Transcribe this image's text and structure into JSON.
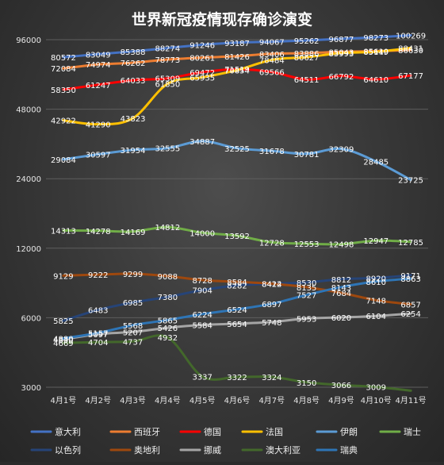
{
  "chart_data": {
    "type": "line",
    "title": "世界新冠疫情现存确诊演变",
    "xlabel": "",
    "ylabel": "",
    "y_scale": "log",
    "ylim": [
      3000,
      96000
    ],
    "yticks": [
      3000,
      6000,
      12000,
      24000,
      48000,
      96000
    ],
    "grid": "horizontal",
    "legend_position": "bottom",
    "categories": [
      "4月1号",
      "4月2号",
      "4月3号",
      "4月4号",
      "4月5号",
      "4月6号",
      "4月7号",
      "4月8号",
      "4月9号",
      "4月10号",
      "4月11号"
    ],
    "series": [
      {
        "name": "意大利",
        "color": "#4472c4",
        "values": [
          80572,
          83049,
          85388,
          88274,
          91246,
          93187,
          94067,
          95262,
          96877,
          98273,
          100269
        ]
      },
      {
        "name": "西班牙",
        "color": "#ed7d31",
        "values": [
          72084,
          74974,
          76262,
          78773,
          80261,
          81426,
          83406,
          83886,
          85043,
          85610,
          86630
        ]
      },
      {
        "name": "德国",
        "color": "#ff0000",
        "values": [
          58350,
          61247,
          64033,
          65309,
          69472,
          71519,
          69566,
          64511,
          66792,
          64610,
          67177
        ]
      },
      {
        "name": "法国",
        "color": "#ffc000",
        "values": [
          42922,
          41290,
          43823,
          61850,
          65935,
          70854,
          78484,
          80627,
          83993,
          85149,
          88431
        ]
      },
      {
        "name": "伊朗",
        "color": "#5b9bd5",
        "values": [
          29084,
          30597,
          31954,
          32555,
          34887,
          32525,
          31678,
          30781,
          32309,
          28485,
          23725
        ]
      },
      {
        "name": "瑞士",
        "color": "#70ad47",
        "values": [
          14313,
          14278,
          14169,
          14812,
          14000,
          13592,
          12728,
          12553,
          12498,
          12947,
          12785
        ]
      },
      {
        "name": "以色列",
        "color": "#264478",
        "values": [
          5825,
          6483,
          6985,
          7380,
          7904,
          8282,
          8414,
          8530,
          8812,
          8920,
          9171
        ]
      },
      {
        "name": "奥地利",
        "color": "#9e480e",
        "values": [
          9129,
          9222,
          9299,
          9088,
          8728,
          8584,
          8422,
          8135,
          7684,
          7148,
          6857
        ]
      },
      {
        "name": "挪威",
        "color": "#a5a5a5",
        "values": [
          4830,
          5097,
          5207,
          5426,
          5584,
          5654,
          5748,
          5953,
          6020,
          6104,
          6254
        ]
      },
      {
        "name": "澳大利亚",
        "color": "#43682b",
        "values": [
          4669,
          4704,
          4737,
          4932,
          3337,
          3322,
          3324,
          3150,
          3066,
          3009,
          2900
        ]
      },
      {
        "name": "瑞典",
        "color": "#2e75b6",
        "values": [
          4880,
          5157,
          5568,
          5865,
          6224,
          6524,
          6897,
          7527,
          8143,
          8610,
          8863
        ]
      }
    ]
  }
}
